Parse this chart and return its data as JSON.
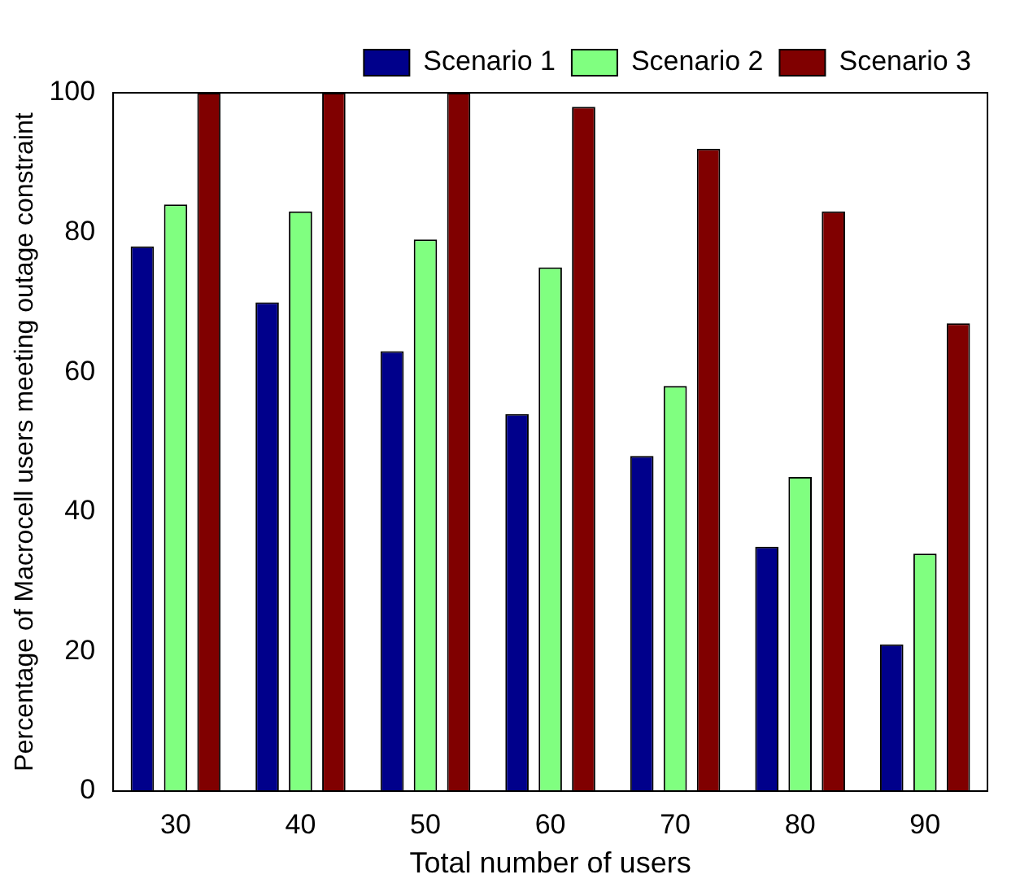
{
  "chart_data": {
    "type": "bar",
    "xlabel": "Total number of users",
    "ylabel": "Percentage of Macrocell users meeting outage constraint",
    "categories": [
      "30",
      "40",
      "50",
      "60",
      "70",
      "80",
      "90"
    ],
    "series": [
      {
        "name": "Scenario 1",
        "color": "#00008b",
        "values": [
          78,
          70,
          63,
          54,
          48,
          35,
          21
        ]
      },
      {
        "name": "Scenario 2",
        "color": "#80ff80",
        "values": [
          84,
          83,
          79,
          75,
          58,
          45,
          34
        ]
      },
      {
        "name": "Scenario 3",
        "color": "#800000",
        "values": [
          100,
          100,
          100,
          98,
          92,
          83,
          67
        ]
      }
    ],
    "ylim": [
      0,
      100
    ],
    "yticks": [
      0,
      20,
      40,
      60,
      80,
      100
    ],
    "grid": false,
    "legend": "top right"
  }
}
